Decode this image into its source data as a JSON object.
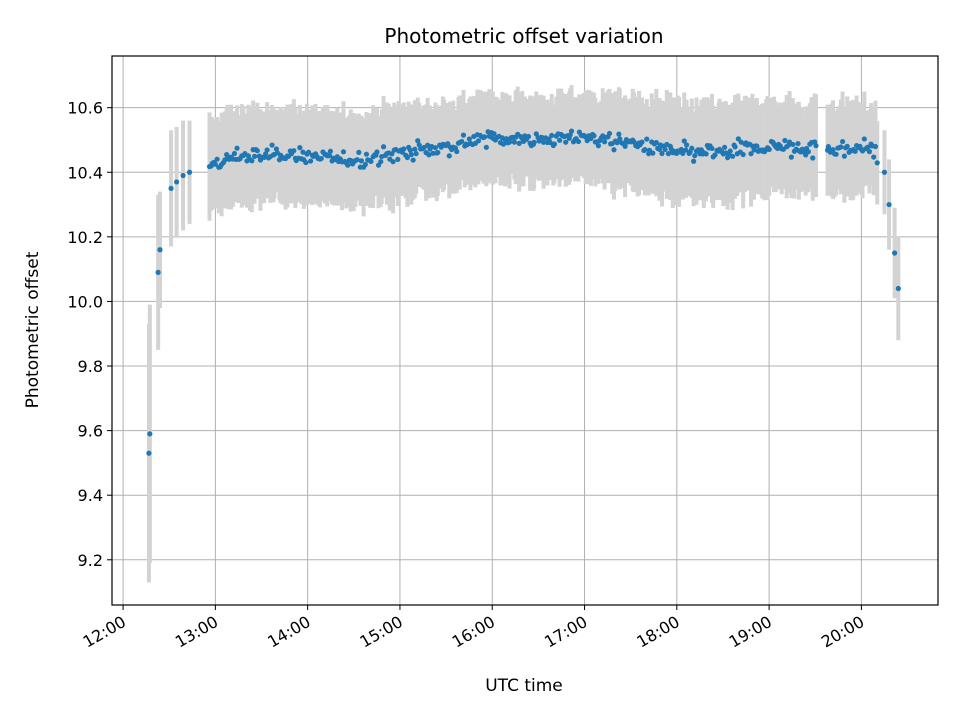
{
  "chart_data": {
    "type": "scatter",
    "title": "Photometric offset variation",
    "xlabel": "UTC time",
    "ylabel": "Photometric offset",
    "x_unit": "hours UTC",
    "xlim": [
      11.88,
      20.83
    ],
    "ylim": [
      9.06,
      10.76
    ],
    "x_ticks": [
      {
        "value": 12,
        "label": "12:00"
      },
      {
        "value": 13,
        "label": "13:00"
      },
      {
        "value": 14,
        "label": "14:00"
      },
      {
        "value": 15,
        "label": "15:00"
      },
      {
        "value": 16,
        "label": "16:00"
      },
      {
        "value": 17,
        "label": "17:00"
      },
      {
        "value": 18,
        "label": "18:00"
      },
      {
        "value": 19,
        "label": "19:00"
      },
      {
        "value": 20,
        "label": "20:00"
      }
    ],
    "y_ticks": [
      {
        "value": 9.2,
        "label": "9.2"
      },
      {
        "value": 9.4,
        "label": "9.4"
      },
      {
        "value": 9.6,
        "label": "9.6"
      },
      {
        "value": 9.8,
        "label": "9.8"
      },
      {
        "value": 10.0,
        "label": "10.0"
      },
      {
        "value": 10.2,
        "label": "10.2"
      },
      {
        "value": 10.4,
        "label": "10.4"
      },
      {
        "value": 10.6,
        "label": "10.6"
      }
    ],
    "grid": true,
    "marker_color": "#1f77b4",
    "errorbar_color": "#d3d3d3",
    "anchors": [
      [
        12.28,
        9.53,
        0.4
      ],
      [
        12.29,
        9.59,
        0.4
      ],
      [
        12.38,
        10.09,
        0.24
      ],
      [
        12.4,
        10.16,
        0.18
      ],
      [
        12.52,
        10.35,
        0.18
      ],
      [
        12.58,
        10.37,
        0.17
      ],
      [
        12.65,
        10.39,
        0.17
      ],
      [
        12.72,
        10.4,
        0.16
      ],
      [
        12.95,
        10.41,
        0.15
      ],
      [
        13.2,
        10.45,
        0.14
      ],
      [
        13.5,
        10.45,
        0.14
      ],
      [
        13.75,
        10.46,
        0.14
      ],
      [
        14.0,
        10.45,
        0.14
      ],
      [
        14.3,
        10.44,
        0.14
      ],
      [
        14.6,
        10.44,
        0.14
      ],
      [
        15.0,
        10.46,
        0.14
      ],
      [
        15.5,
        10.48,
        0.13
      ],
      [
        16.0,
        10.51,
        0.13
      ],
      [
        16.5,
        10.5,
        0.13
      ],
      [
        17.0,
        10.51,
        0.13
      ],
      [
        17.5,
        10.49,
        0.14
      ],
      [
        18.0,
        10.46,
        0.15
      ],
      [
        18.5,
        10.46,
        0.15
      ],
      [
        19.0,
        10.48,
        0.14
      ],
      [
        19.4,
        10.47,
        0.14
      ],
      [
        19.8,
        10.47,
        0.14
      ],
      [
        20.1,
        10.48,
        0.13
      ],
      [
        20.25,
        10.4,
        0.13
      ],
      [
        20.3,
        10.3,
        0.14
      ],
      [
        20.36,
        10.15,
        0.14
      ],
      [
        20.4,
        10.04,
        0.16
      ]
    ],
    "gaps": [
      [
        12.75,
        12.93
      ],
      [
        19.52,
        19.62
      ]
    ],
    "point_count": 430,
    "scatter_amplitude": 0.018
  }
}
